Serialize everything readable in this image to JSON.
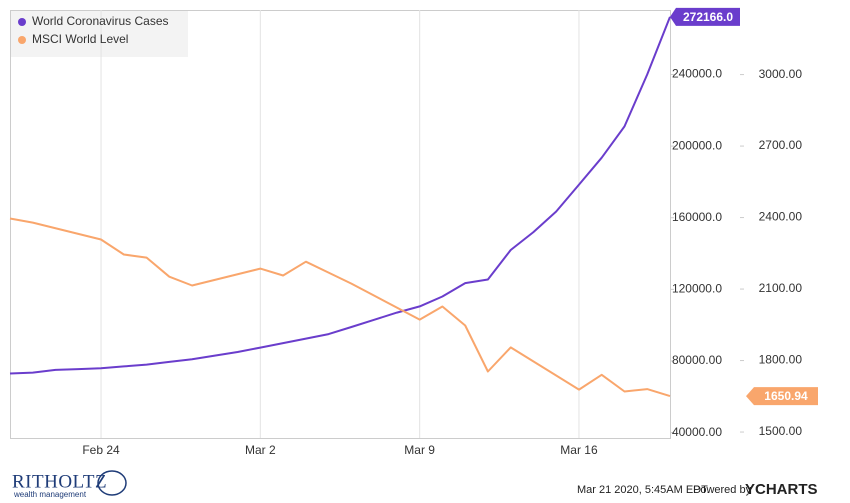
{
  "chart_data": {
    "type": "line",
    "legend": "upper left",
    "grid": "x",
    "categories": [
      "Feb 20",
      "Feb 21",
      "Feb 22",
      "Feb 23",
      "Feb 24",
      "Feb 25",
      "Feb 26",
      "Feb 27",
      "Feb 28",
      "Feb 29",
      "Mar 1",
      "Mar 2",
      "Mar 3",
      "Mar 4",
      "Mar 5",
      "Mar 6",
      "Mar 7",
      "Mar 8",
      "Mar 9",
      "Mar 10",
      "Mar 11",
      "Mar 12",
      "Mar 13",
      "Mar 14",
      "Mar 15",
      "Mar 16",
      "Mar 17",
      "Mar 18",
      "Mar 19",
      "Mar 20"
    ],
    "xticks": [
      "Feb 24",
      "Mar 2",
      "Mar 9",
      "Mar 16"
    ],
    "ylim": [
      37000,
      276000
    ],
    "yticks": [
      {
        "value": 40000,
        "label": "40000.00"
      },
      {
        "value": 80000,
        "label": "80000.00"
      },
      {
        "value": 120000,
        "label": "120000.0"
      },
      {
        "value": 160000,
        "label": "160000.0"
      },
      {
        "value": 200000,
        "label": "200000.0"
      },
      {
        "value": 240000,
        "label": "240000.0"
      }
    ],
    "y2lim": [
      1475,
      3271
    ],
    "y2ticks": [
      {
        "value": 1500,
        "label": "1500.00"
      },
      {
        "value": 1800,
        "label": "1800.00"
      },
      {
        "value": 2100,
        "label": "2100.00"
      },
      {
        "value": 2400,
        "label": "2400.00"
      },
      {
        "value": 2700,
        "label": "2700.00"
      },
      {
        "value": 3000,
        "label": "3000.00"
      }
    ],
    "series": [
      {
        "name": "World Coronavirus Cases",
        "color": "#6a3dcc",
        "values": [
          73000,
          73500,
          75000,
          75500,
          76000,
          77000,
          78000,
          79500,
          81000,
          83000,
          85000,
          87500,
          90000,
          92500,
          95000,
          99000,
          103000,
          107000,
          110500,
          116000,
          123500,
          125500,
          142000,
          152000,
          163500,
          178500,
          193500,
          211000,
          240000,
          272166
        ],
        "value_labels": [
          null,
          null,
          null,
          null,
          null,
          null,
          null,
          null,
          null,
          null,
          null,
          null,
          null,
          null,
          null,
          null,
          null,
          null,
          null,
          null,
          null,
          null,
          null,
          null,
          null,
          null,
          null,
          null,
          null,
          "272166.0"
        ]
      },
      {
        "name": "MSCI World Level",
        "color": "#f9a66c",
        "axis": "y2",
        "x": [
          "Feb 20",
          "Feb 21",
          "Feb 24",
          "Feb 25",
          "Feb 26",
          "Feb 27",
          "Feb 28",
          "Mar 2",
          "Mar 3",
          "Mar 4",
          "Mar 5",
          "Mar 6",
          "Mar 9",
          "Mar 10",
          "Mar 11",
          "Mar 12",
          "Mar 13",
          "Mar 16",
          "Mar 17",
          "Mar 18",
          "Mar 19",
          "Mar 20"
        ],
        "values": [
          2396,
          2379,
          2308,
          2245,
          2232,
          2152,
          2115,
          2186,
          2157,
          2215,
          2169,
          2123,
          1972,
          2027,
          1947,
          1754,
          1855,
          1678,
          1740,
          1670,
          1680,
          1650.94
        ],
        "value_labels": [
          null,
          null,
          null,
          null,
          null,
          null,
          null,
          null,
          null,
          null,
          null,
          null,
          null,
          null,
          null,
          null,
          null,
          null,
          null,
          null,
          null,
          "1650.94"
        ]
      }
    ]
  },
  "footer": {
    "logo": "RITHOLTZ",
    "logo_subtitle": "wealth management",
    "timestamp": "Mar 21 2020, 5:45AM EDT.",
    "powered_by": "Powered by",
    "brand": "YCHARTS"
  }
}
